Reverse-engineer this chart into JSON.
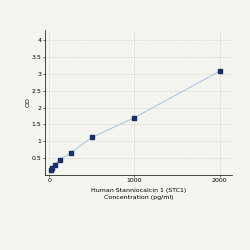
{
  "x": [
    15.625,
    31.25,
    62.5,
    125,
    250,
    500,
    1000,
    2000
  ],
  "y": [
    0.158,
    0.22,
    0.31,
    0.45,
    0.65,
    1.12,
    1.7,
    3.08
  ],
  "line_color": "#aac8e8",
  "marker_color": "#1a2e6b",
  "marker_size": 3,
  "xlabel_line1": "Human Stanniocalcin 1 (STC1)",
  "xlabel_line2": "Concentration (pg/ml)",
  "ylabel": "OD",
  "xlim": [
    -50,
    2150
  ],
  "ylim": [
    0,
    4.3
  ],
  "yticks": [
    0.5,
    1.0,
    1.5,
    2.0,
    2.5,
    3.0,
    3.5,
    4.0
  ],
  "ytick_labels": [
    "0.5",
    "1",
    "1.5",
    "2",
    "2.5",
    "3",
    "3.5",
    "4"
  ],
  "xtick_positions": [
    0,
    1000,
    2000
  ],
  "xtick_labels": [
    "0",
    "1000",
    "2000"
  ],
  "grid_color": "#d0d0d0",
  "background_color": "#f5f5f0",
  "fontsize_axis": 4.5,
  "fontsize_label": 4.5,
  "linewidth": 0.8
}
